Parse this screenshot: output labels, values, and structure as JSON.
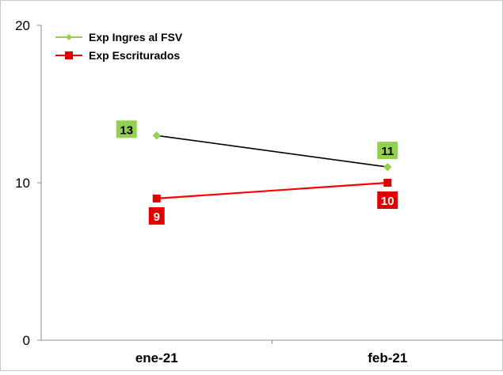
{
  "chart_data": {
    "type": "line",
    "title": "",
    "xlabel": "",
    "ylabel": "",
    "categories": [
      "ene-21",
      "feb-21"
    ],
    "ylim": [
      0,
      20
    ],
    "yticks": [
      "0",
      "10",
      "20"
    ],
    "grid": false,
    "legend_position": "top-left",
    "series": [
      {
        "name": "Exp Ingres al FSV",
        "values": [
          13,
          11
        ],
        "labels": [
          "13",
          "11"
        ],
        "line_color": "#000000",
        "marker_color": "#92d050",
        "label_bg": "#92d050",
        "label_text_color": "#000000",
        "marker": "diamond"
      },
      {
        "name": "Exp Escriturados",
        "values": [
          9,
          10
        ],
        "labels": [
          "9",
          "10"
        ],
        "line_color": "#ff0000",
        "marker_color": "#e00000",
        "label_bg": "#e00000",
        "label_text_color": "#ffffff",
        "marker": "square"
      }
    ]
  }
}
